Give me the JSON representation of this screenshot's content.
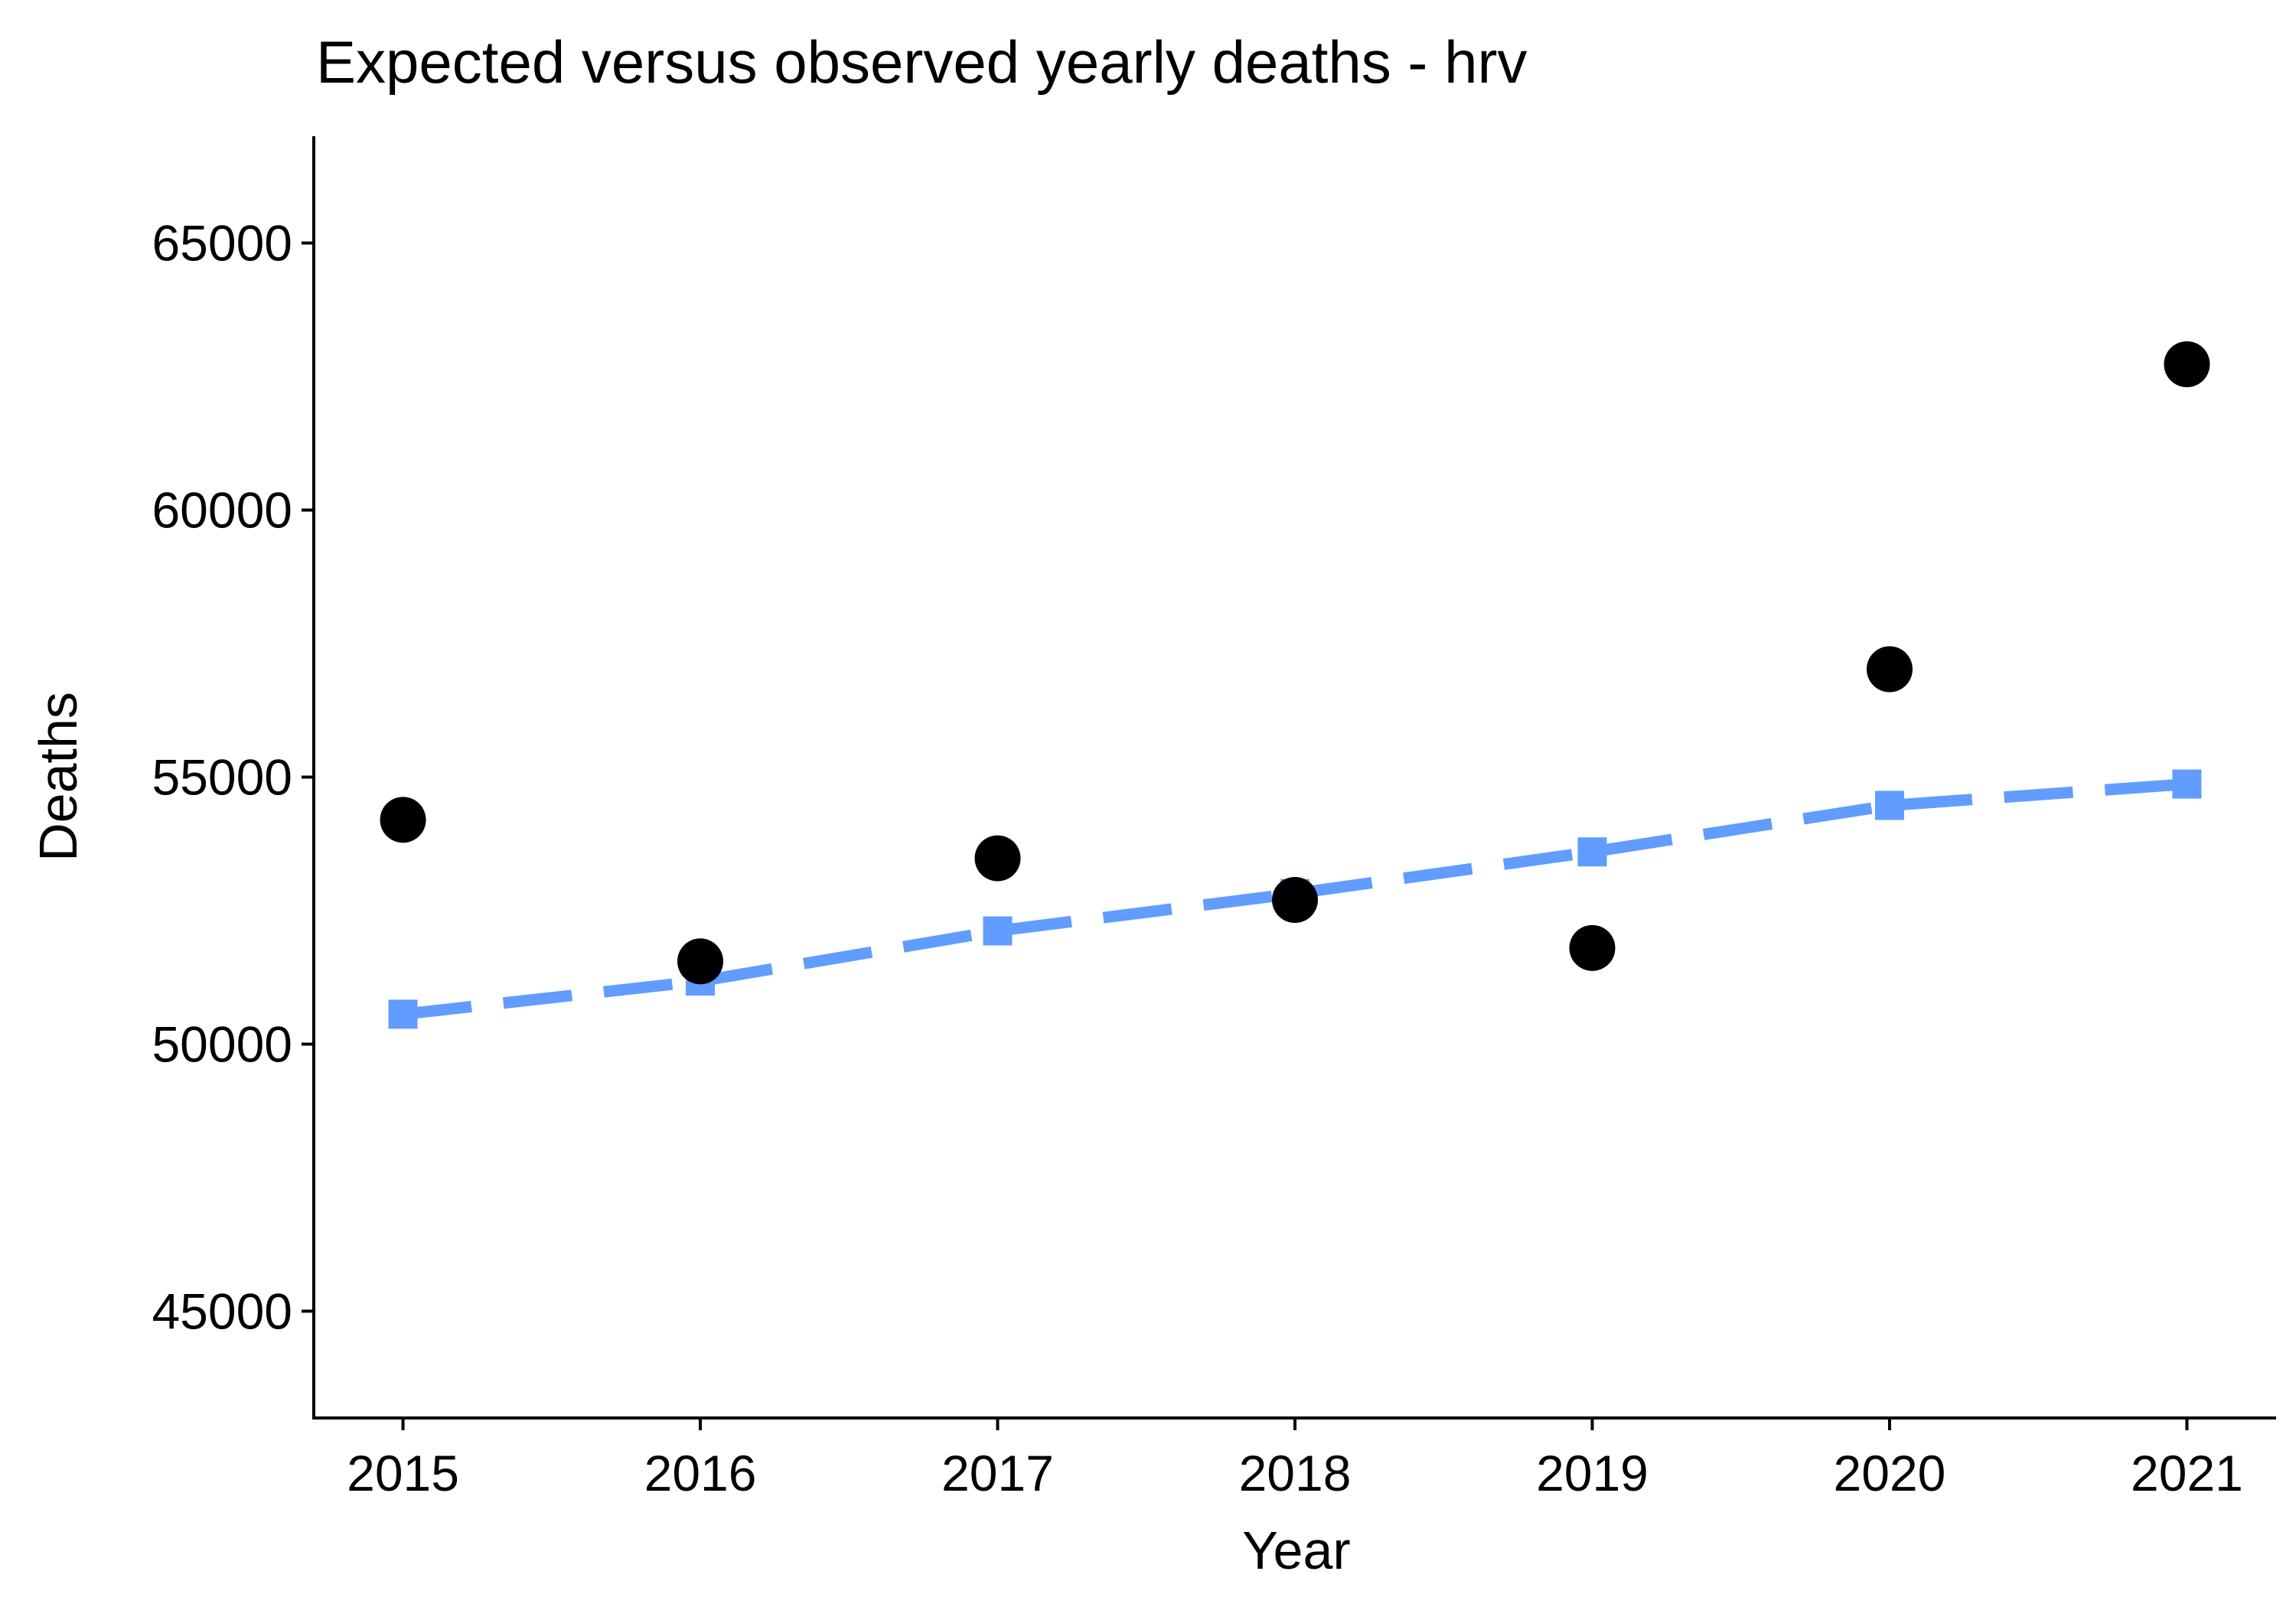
{
  "chart_data": {
    "type": "line",
    "title": "Expected versus observed yearly deaths - hrv",
    "xlabel": "Year",
    "ylabel": "Deaths",
    "x": [
      2015,
      2016,
      2017,
      2018,
      2019,
      2020,
      2021
    ],
    "x_tick_labels": [
      "2015",
      "2016",
      "2017",
      "2018",
      "2019",
      "2020",
      "2021"
    ],
    "y_ticks": [
      45000,
      50000,
      55000,
      60000,
      65000
    ],
    "y_tick_labels": [
      "45000",
      "50000",
      "55000",
      "60000",
      "65000"
    ],
    "xlim": [
      2014.7,
      2021.3
    ],
    "ylim": [
      43000,
      67000
    ],
    "grid": false,
    "legend": "none",
    "series": [
      {
        "style": "scatter",
        "marker": "circle",
        "color": "#000000",
        "values": [
          54200,
          51550,
          53480,
          52700,
          51800,
          57020,
          62730
        ]
      },
      {
        "style": "dashed-line",
        "marker": "square",
        "color": "#619CFF",
        "values": [
          50560,
          51180,
          52120,
          52820,
          53600,
          54470,
          54870
        ]
      }
    ]
  }
}
